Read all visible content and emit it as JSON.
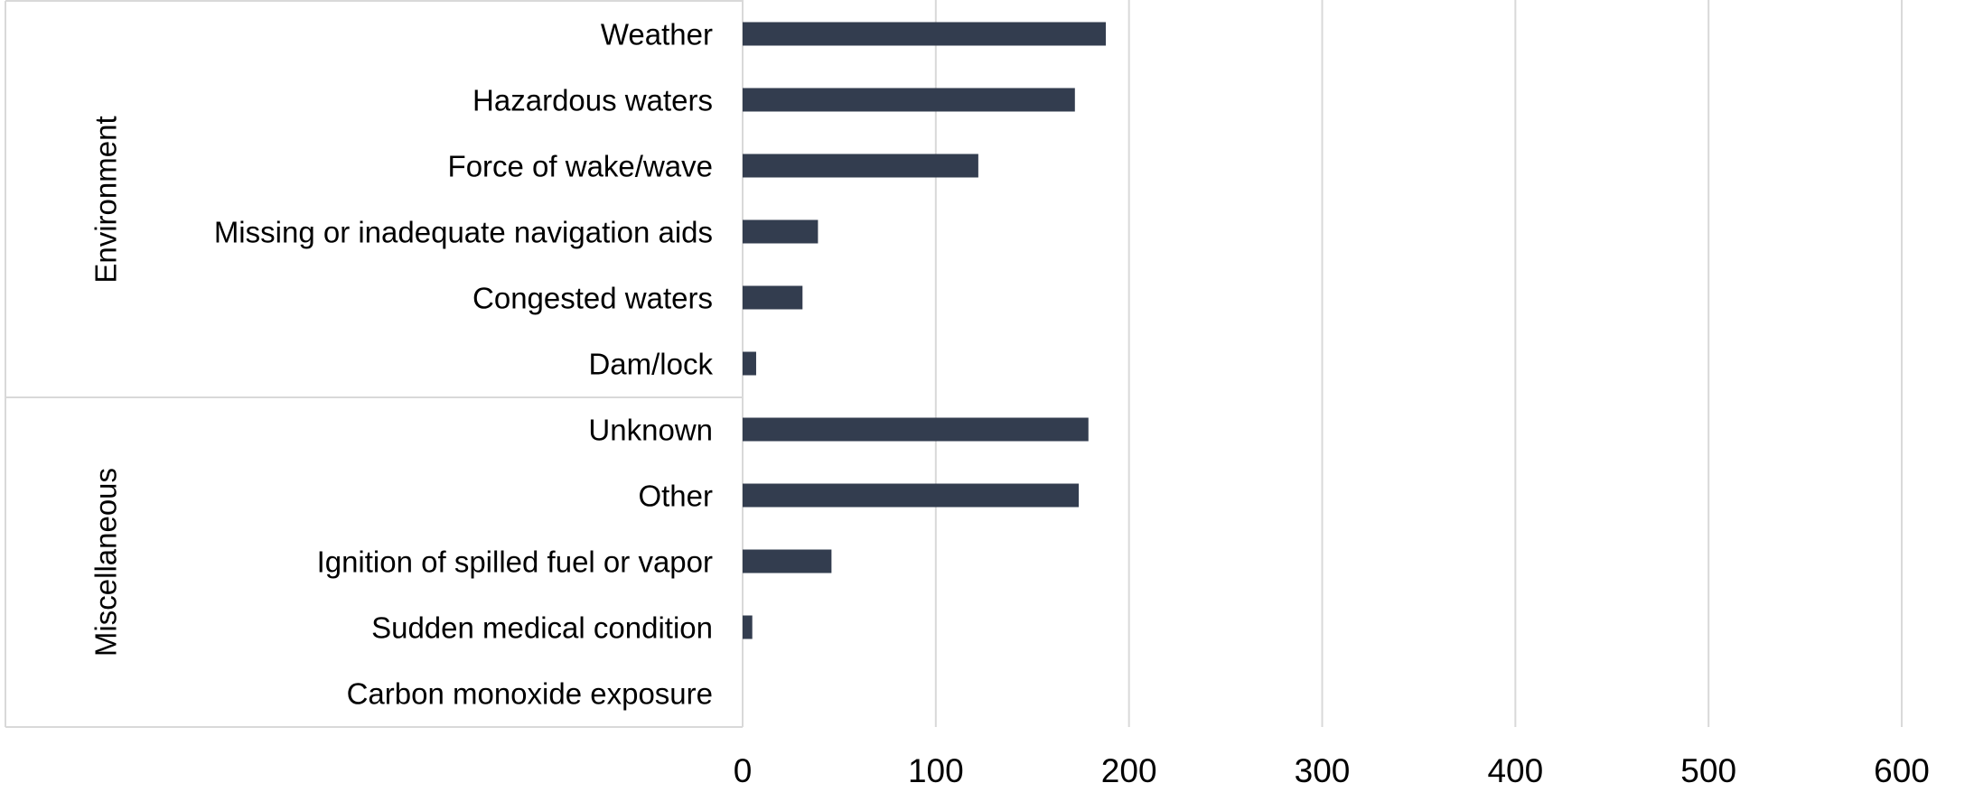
{
  "chart_data": {
    "type": "bar",
    "orientation": "horizontal",
    "bar_color": "#333d4f",
    "grid_color": "#d9d9d9",
    "xlim": [
      0,
      600
    ],
    "x_ticks": [
      "0",
      "100",
      "200",
      "300",
      "400",
      "500",
      "600"
    ],
    "x_tick_values": [
      0,
      100,
      200,
      300,
      400,
      500,
      600
    ],
    "grid": true,
    "groups": [
      {
        "name": "Environment",
        "categories": [
          "Weather",
          "Hazardous waters",
          "Force of wake/wave",
          "Missing or inadequate navigation aids",
          "Congested waters",
          "Dam/lock"
        ],
        "values": [
          188,
          172,
          122,
          39,
          31,
          7
        ]
      },
      {
        "name": "Miscellaneous",
        "categories": [
          "Unknown",
          "Other",
          "Ignition of spilled fuel or vapor",
          "Sudden medical condition",
          "Carbon monoxide exposure"
        ],
        "values": [
          179,
          174,
          46,
          5,
          0
        ]
      }
    ]
  }
}
